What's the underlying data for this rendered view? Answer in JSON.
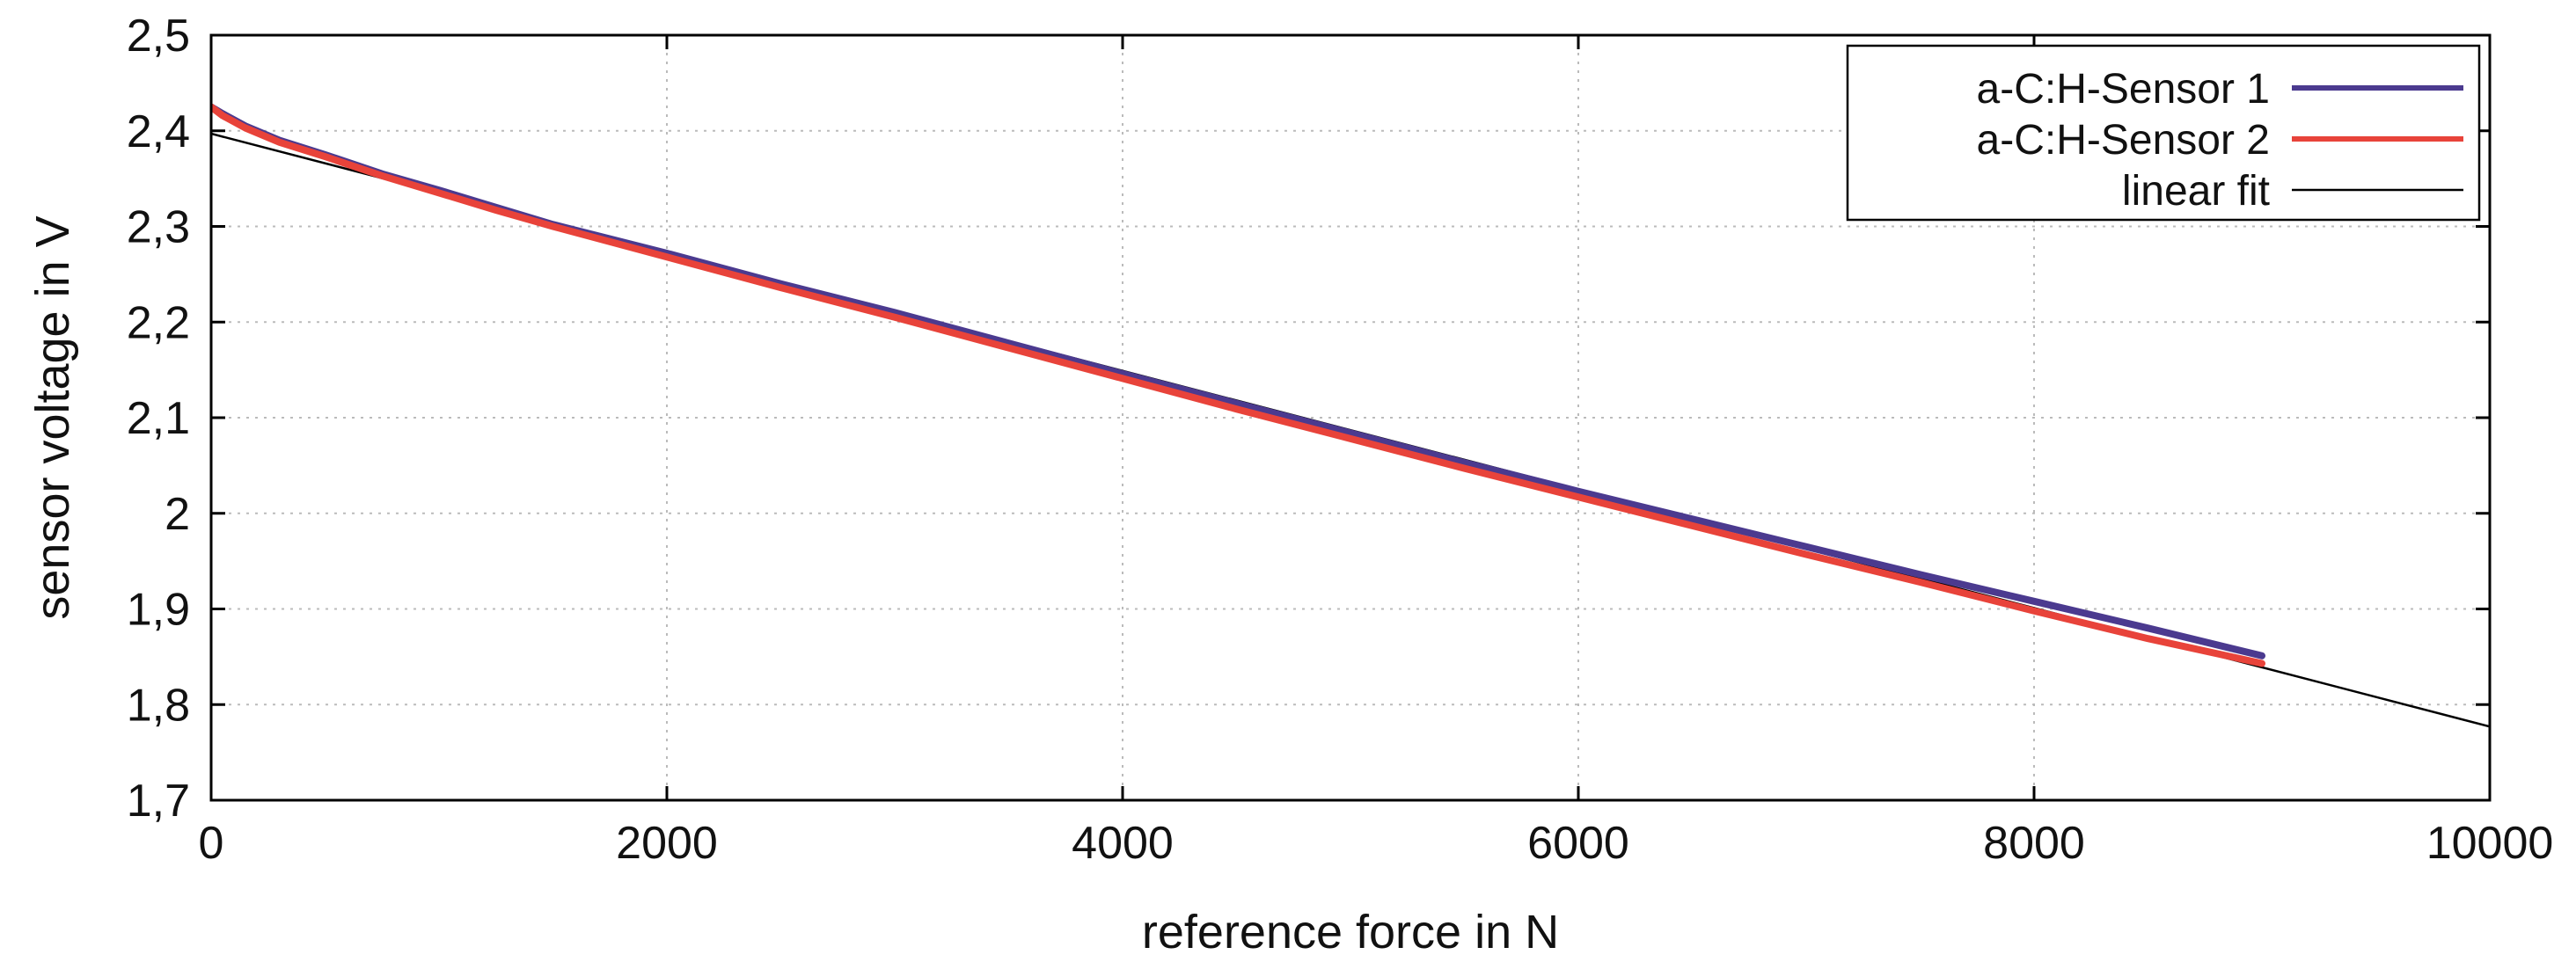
{
  "chart_data": {
    "type": "line",
    "title": "",
    "xlabel": "reference force in N",
    "ylabel": "sensor voltage in V",
    "xlim": [
      0,
      10000
    ],
    "ylim": [
      1.7,
      2.5
    ],
    "xticks": [
      0,
      2000,
      4000,
      6000,
      8000,
      10000
    ],
    "xtick_labels": [
      "0",
      "2000",
      "4000",
      "6000",
      "8000",
      "10000"
    ],
    "yticks": [
      1.7,
      1.8,
      1.9,
      2.0,
      2.1,
      2.2,
      2.3,
      2.4,
      2.5
    ],
    "ytick_labels": [
      "1,7",
      "1,8",
      "1,9",
      "2",
      "2,1",
      "2,2",
      "2,3",
      "2,4",
      "2,5"
    ],
    "grid": true,
    "legend_position": "top-right",
    "series": [
      {
        "name": "a-C:H-Sensor 1",
        "color": "#4b3a8f",
        "x": [
          0,
          50,
          150,
          300,
          500,
          750,
          1000,
          1250,
          1500,
          1750,
          2000,
          2500,
          3000,
          3500,
          4000,
          4500,
          5000,
          5500,
          6000,
          6500,
          7000,
          7500,
          8000,
          8500,
          9000
        ],
        "y": [
          2.425,
          2.418,
          2.405,
          2.39,
          2.375,
          2.355,
          2.338,
          2.32,
          2.302,
          2.287,
          2.272,
          2.24,
          2.21,
          2.178,
          2.146,
          2.115,
          2.084,
          2.053,
          2.023,
          1.994,
          1.965,
          1.936,
          1.908,
          1.88,
          1.851
        ]
      },
      {
        "name": "a-C:H-Sensor 2",
        "color": "#e8433a",
        "x": [
          0,
          50,
          150,
          300,
          500,
          750,
          1000,
          1250,
          1500,
          1750,
          2000,
          2500,
          3000,
          3500,
          4000,
          4500,
          5000,
          5500,
          6000,
          6500,
          7000,
          7500,
          8000,
          8500,
          9000
        ],
        "y": [
          2.425,
          2.416,
          2.403,
          2.388,
          2.373,
          2.353,
          2.335,
          2.317,
          2.3,
          2.284,
          2.268,
          2.236,
          2.205,
          2.173,
          2.141,
          2.109,
          2.078,
          2.047,
          2.017,
          1.987,
          1.957,
          1.928,
          1.898,
          1.869,
          1.843
        ]
      },
      {
        "name": "linear fit",
        "color": "#000000",
        "x": [
          0,
          10000
        ],
        "y": [
          2.397,
          1.777
        ]
      }
    ]
  }
}
